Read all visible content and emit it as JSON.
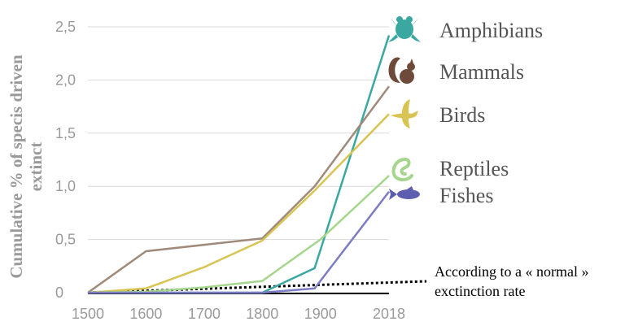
{
  "chart_data": {
    "type": "line",
    "ylabel_line1": "Cumulative % of specis driven",
    "ylabel_line2": "extinct",
    "x_ticks": [
      "1500",
      "1600",
      "1700",
      "1800",
      "1900",
      "2018"
    ],
    "y_ticks": [
      "2,5",
      "2,0",
      "1,5",
      "1,0",
      "0,5",
      "0"
    ],
    "xlim": [
      1500,
      2018
    ],
    "ylim": [
      0,
      2.6
    ],
    "grid": "horizontal",
    "series": [
      {
        "name": "Amphibians",
        "color": "#3aa8a0",
        "icon": "frog-icon",
        "x": [
          1500,
          1600,
          1700,
          1800,
          1890,
          2018
        ],
        "y": [
          0,
          0,
          0,
          0,
          0.23,
          2.42
        ]
      },
      {
        "name": "Mammals",
        "color": "#a08a7a",
        "icon": "squirrel-icon",
        "x": [
          1500,
          1600,
          1800,
          1890,
          2018
        ],
        "y": [
          0,
          0.39,
          0.51,
          1.0,
          1.94
        ]
      },
      {
        "name": "Birds",
        "color": "#d7c452",
        "icon": "bird-icon",
        "x": [
          1500,
          1600,
          1700,
          1800,
          1890,
          2018
        ],
        "y": [
          0,
          0.04,
          0.24,
          0.49,
          0.96,
          1.68
        ]
      },
      {
        "name": "Reptiles",
        "color": "#a6d68d",
        "icon": "snake-icon",
        "x": [
          1500,
          1600,
          1700,
          1800,
          1900,
          2018
        ],
        "y": [
          0,
          0.01,
          0.05,
          0.11,
          0.5,
          1.1
        ]
      },
      {
        "name": "Fishes",
        "color": "#7c7cc4",
        "icon": "fish-icon",
        "x": [
          1500,
          1600,
          1700,
          1800,
          1890,
          2018
        ],
        "y": [
          0,
          0,
          0,
          0,
          0.04,
          0.95
        ]
      }
    ],
    "baseline": {
      "color": "#000000",
      "x": [
        1500,
        2018
      ],
      "y": [
        0,
        0
      ]
    },
    "normal_rate": {
      "line1": "According to a « normal »",
      "line2": "exctinction rate",
      "x": [
        1500,
        2018
      ],
      "y": [
        0,
        0.11
      ],
      "style": "dotted"
    }
  }
}
